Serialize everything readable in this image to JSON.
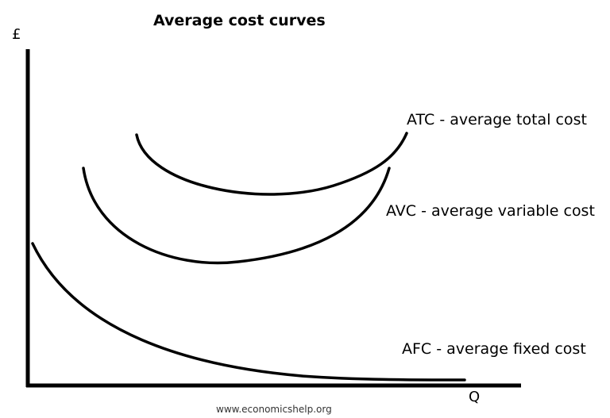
{
  "title": "Average cost curves",
  "axes": {
    "y_label": "£",
    "x_label": "Q"
  },
  "curves": [
    {
      "id": "atc",
      "label": "ATC - average total cost"
    },
    {
      "id": "avc",
      "label": "AVC - average variable cost"
    },
    {
      "id": "afc",
      "label": "AFC - average fixed cost"
    }
  ],
  "source": "www.economicshelp.org",
  "colors": {
    "line": "#000000",
    "background": "#ffffff"
  }
}
